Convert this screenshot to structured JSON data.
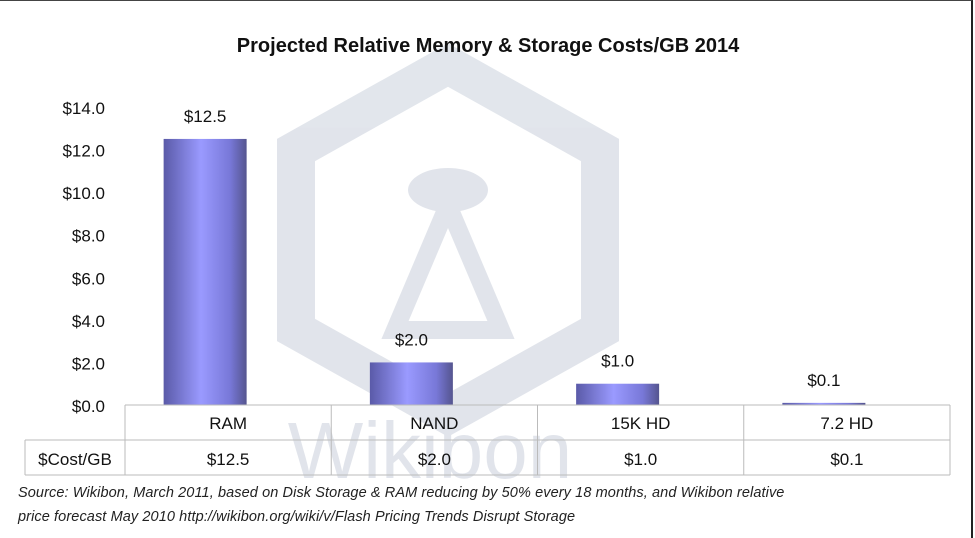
{
  "chart_data": {
    "type": "bar",
    "title": "Projected Relative Memory & Storage Costs/GB 2014",
    "categories": [
      "RAM",
      "NAND",
      "15K HD",
      "7.2 HD"
    ],
    "values": [
      12.5,
      2.0,
      1.0,
      0.1
    ],
    "data_labels": [
      "$12.5",
      "$2.0",
      "$1.0",
      "$0.1"
    ],
    "ylim": [
      0,
      14
    ],
    "yticks": [
      0,
      2,
      4,
      6,
      8,
      10,
      12,
      14
    ],
    "ytick_labels": [
      "$0.0",
      "$2.0",
      "$4.0",
      "$6.0",
      "$8.0",
      "$10.0",
      "$12.0",
      "$14.0"
    ],
    "xlabel": "",
    "ylabel": "",
    "grid": false,
    "legend": "none",
    "data_table": {
      "row_label": "$Cost/GB",
      "values": [
        "$12.5",
        "$2.0",
        "$1.0",
        "$0.1"
      ]
    },
    "bar_color": "#8c8cf0"
  },
  "watermark": "Wikibon",
  "source_lines": [
    "Source: Wikibon, March 2011, based on Disk Storage & RAM reducing by 50% every 18 months, and Wikibon relative",
    "price forecast May 2010 http://wikibon.org/wiki/v/Flash  Pricing  Trends  Disrupt  Storage"
  ]
}
